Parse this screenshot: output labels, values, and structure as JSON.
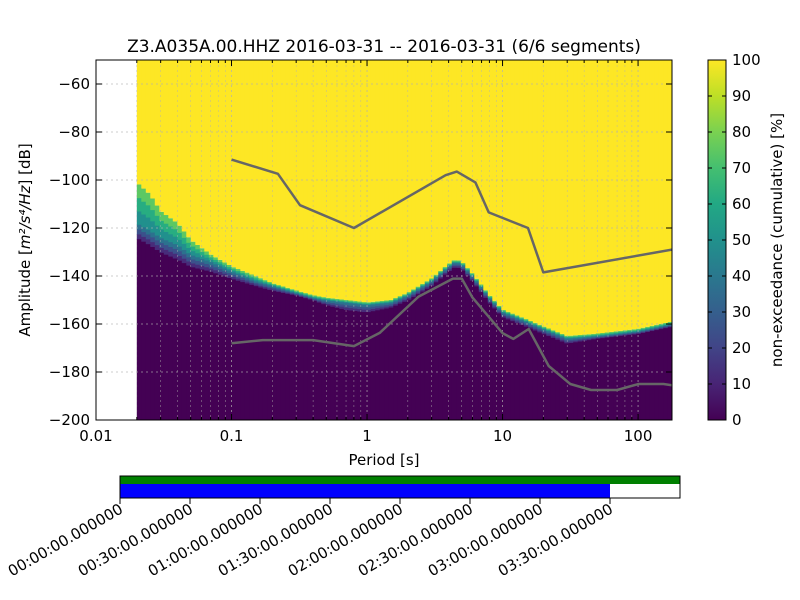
{
  "chart_data": [
    {
      "type": "heatmap",
      "title": "Z3.A035A.00.HHZ   2016-03-31 -- 2016-03-31  (6/6 segments)",
      "xlabel": "Period [s]",
      "ylabel_prefix": "Amplitude [",
      "ylabel_unit": "m²/s⁴/Hz",
      "ylabel_suffix": "] [dB]",
      "x_scale": "log",
      "xlim": [
        0.01,
        178
      ],
      "ylim": [
        -200,
        -50
      ],
      "x_ticks": [
        0.01,
        0.1,
        1,
        10,
        100
      ],
      "x_tick_labels": [
        "0.01",
        "0.1",
        "1",
        "10",
        "100"
      ],
      "y_ticks": [
        -200,
        -180,
        -160,
        -140,
        -120,
        -100,
        -80,
        -60
      ],
      "y_tick_labels": [
        "−200",
        "−180",
        "−160",
        "−140",
        "−120",
        "−100",
        "−80",
        "−60"
      ],
      "grid": true,
      "colormap": "viridis",
      "colorbar": {
        "label": "non-exceedance (cumulative) [%]",
        "range": [
          0,
          100
        ],
        "ticks": [
          0,
          10,
          20,
          30,
          40,
          50,
          60,
          70,
          80,
          90,
          100
        ],
        "tick_labels": [
          "0",
          "10",
          "20",
          "30",
          "40",
          "50",
          "60",
          "70",
          "80",
          "90",
          "100"
        ]
      },
      "data_start_period": 0.02,
      "psd_levels": {
        "period": [
          0.02,
          0.025,
          0.03,
          0.04,
          0.05,
          0.07,
          0.1,
          0.15,
          0.2,
          0.3,
          0.4,
          0.5,
          0.7,
          1.0,
          1.5,
          2.0,
          3.0,
          4.0,
          4.5,
          5.0,
          6.0,
          8.0,
          10,
          15,
          20,
          30,
          50,
          100,
          178
        ],
        "p10": [
          -124,
          -127,
          -130,
          -133,
          -136,
          -138,
          -141,
          -144,
          -146,
          -148,
          -150,
          -152,
          -154,
          -155,
          -153,
          -150,
          -144,
          -138,
          -136,
          -137,
          -142,
          -151,
          -157,
          -161,
          -164,
          -168,
          -166,
          -164,
          -161
        ],
        "p50": [
          -118,
          -121,
          -124,
          -127,
          -131,
          -134,
          -138,
          -142,
          -144,
          -147,
          -149,
          -150,
          -151,
          -152,
          -151,
          -148,
          -142,
          -136,
          -134,
          -135,
          -140,
          -149,
          -155,
          -159,
          -162,
          -166,
          -165,
          -163,
          -160
        ],
        "p90": [
          -101,
          -106,
          -113,
          -118,
          -125,
          -131,
          -136,
          -140,
          -143,
          -146,
          -148,
          -149,
          -150,
          -151,
          -150,
          -147,
          -141,
          -135,
          -133,
          -134,
          -139,
          -148,
          -154,
          -158,
          -161,
          -165,
          -164,
          -162,
          -159
        ]
      },
      "noise_models": [
        {
          "name": "high",
          "period": [
            0.1,
            0.22,
            0.32,
            0.8,
            3.8,
            4.6,
            6.3,
            7.9,
            15.4,
            20,
            178
          ],
          "db": [
            -91.5,
            -97.4,
            -110.5,
            -120,
            -98,
            -96.5,
            -101,
            -113.5,
            -120,
            -138.5,
            -129
          ]
        },
        {
          "name": "low",
          "period": [
            0.1,
            0.17,
            0.4,
            0.8,
            1.24,
            2.4,
            4.3,
            5,
            6,
            10,
            12,
            15.6,
            21.9,
            31.6,
            45,
            70,
            101,
            154,
            178
          ],
          "db": [
            -168,
            -166.7,
            -166.7,
            -169.2,
            -163.7,
            -148.6,
            -141.1,
            -141.1,
            -149,
            -163.8,
            -166.2,
            -162.1,
            -177.5,
            -185,
            -187.5,
            -187.5,
            -185,
            -185,
            -185.5
          ]
        }
      ]
    },
    {
      "type": "timeline",
      "tick_labels": [
        "00:00:00.000000",
        "00:30:00.000000",
        "01:00:00.000000",
        "01:30:00.000000",
        "02:00:00.000000",
        "02:30:00.000000",
        "03:00:00.000000",
        "03:30:00.000000"
      ],
      "tick_minutes": [
        0,
        30,
        60,
        90,
        120,
        150,
        180,
        210
      ],
      "range_minutes": [
        0,
        240
      ],
      "data_coverage_end_minutes": 240,
      "psd_coverage_end_minutes": 210,
      "data_color": "#008000",
      "psd_color": "#0000ff"
    }
  ]
}
